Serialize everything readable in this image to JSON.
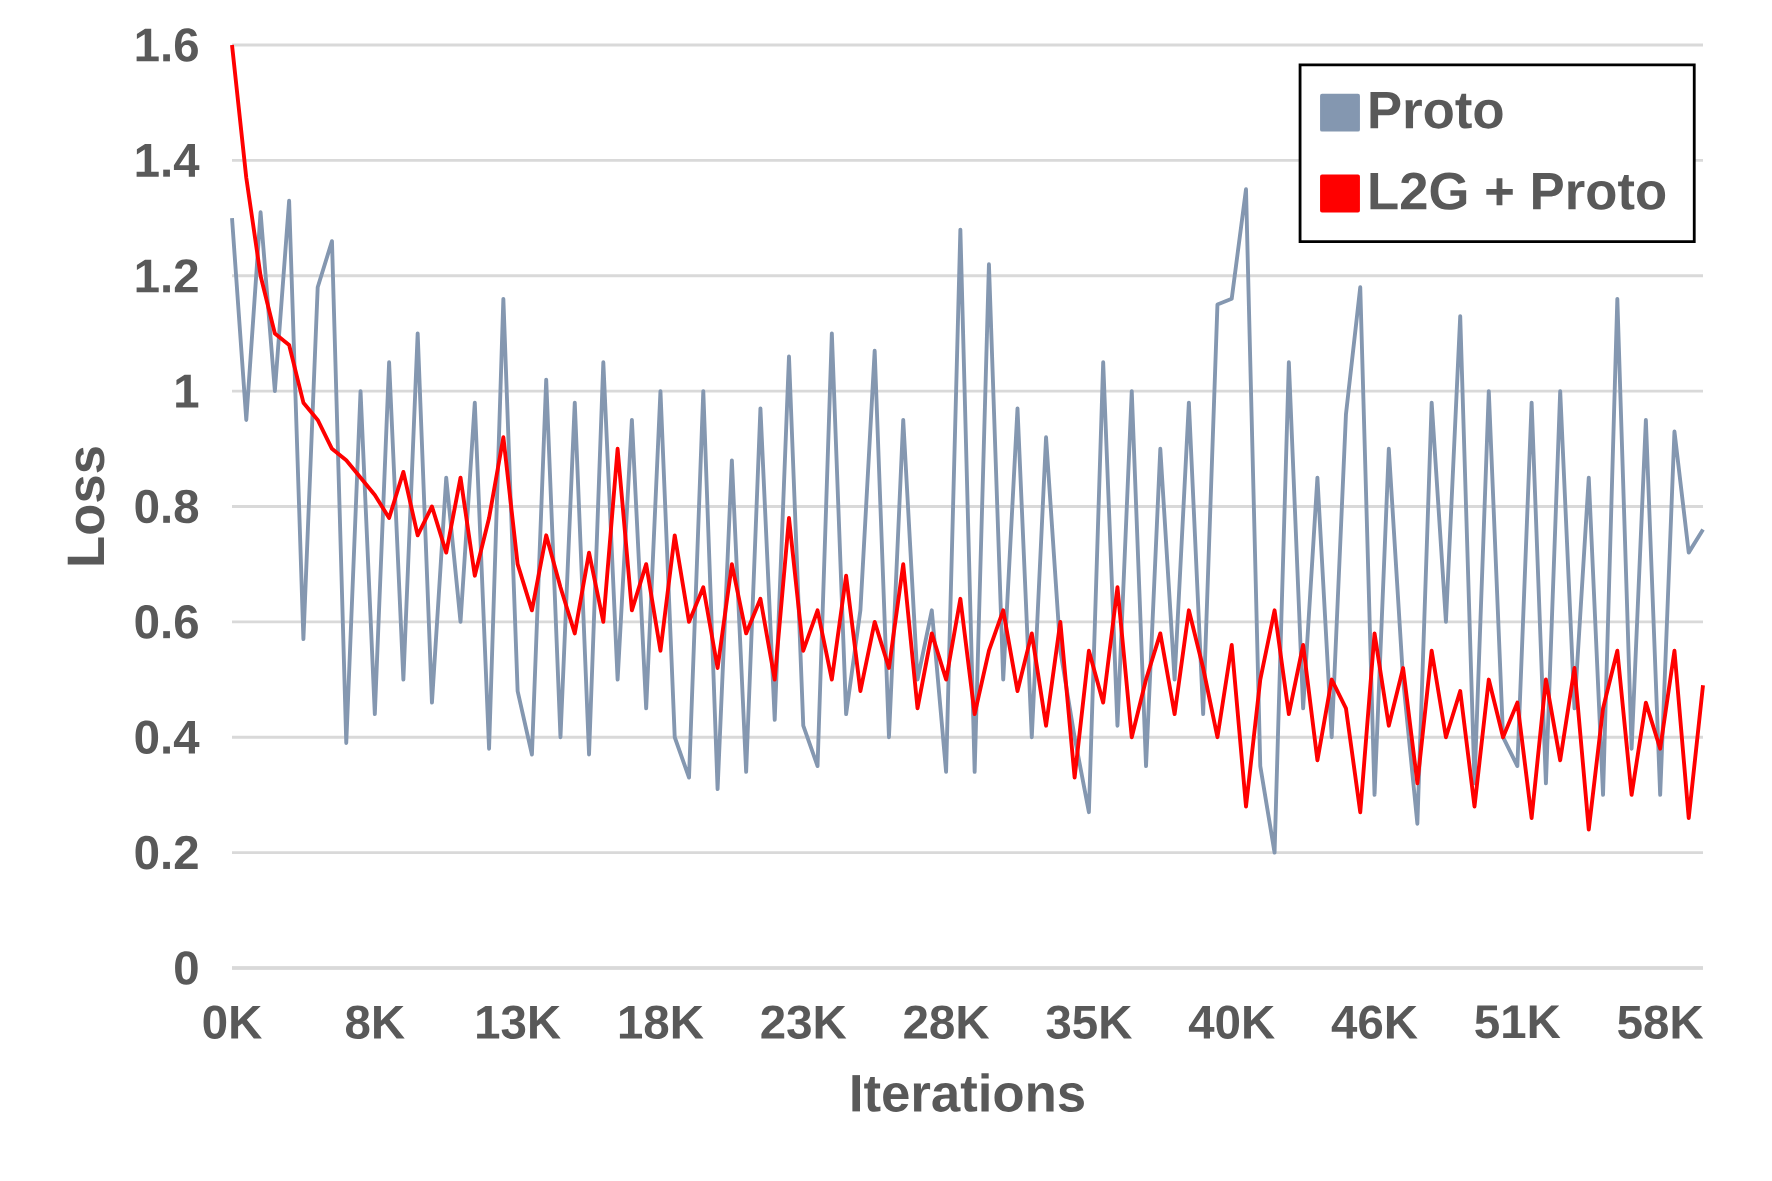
{
  "chart_data": {
    "type": "line",
    "xlabel": "Iterations",
    "ylabel": "Loss",
    "categories": [
      "0K",
      null,
      null,
      null,
      null,
      null,
      null,
      null,
      null,
      null,
      "8K",
      null,
      null,
      null,
      null,
      null,
      null,
      null,
      null,
      null,
      "13K",
      null,
      null,
      null,
      null,
      null,
      null,
      null,
      null,
      null,
      "18K",
      null,
      null,
      null,
      null,
      null,
      null,
      null,
      null,
      null,
      "23K",
      null,
      null,
      null,
      null,
      null,
      null,
      null,
      null,
      null,
      "28K",
      null,
      null,
      null,
      null,
      null,
      null,
      null,
      null,
      null,
      "35K",
      null,
      null,
      null,
      null,
      null,
      null,
      null,
      null,
      null,
      "40K",
      null,
      null,
      null,
      null,
      null,
      null,
      null,
      null,
      null,
      "46K",
      null,
      null,
      null,
      null,
      null,
      null,
      null,
      null,
      null,
      "51K",
      null,
      null,
      null,
      null,
      null,
      null,
      null,
      null,
      null,
      "58K",
      null,
      null,
      null
    ],
    "series": [
      {
        "name": "Proto",
        "color": "#8497b0",
        "values": [
          1.3,
          0.95,
          1.31,
          1.0,
          1.33,
          0.57,
          1.18,
          1.26,
          0.39,
          1.0,
          0.44,
          1.05,
          0.5,
          1.1,
          0.46,
          0.85,
          0.6,
          0.98,
          0.38,
          1.16,
          0.48,
          0.37,
          1.02,
          0.4,
          0.98,
          0.37,
          1.05,
          0.5,
          0.95,
          0.45,
          1.0,
          0.4,
          0.33,
          1.0,
          0.31,
          0.88,
          0.34,
          0.97,
          0.43,
          1.06,
          0.42,
          0.35,
          1.1,
          0.44,
          0.62,
          1.07,
          0.4,
          0.95,
          0.5,
          0.62,
          0.34,
          1.28,
          0.34,
          1.22,
          0.5,
          0.97,
          0.4,
          0.92,
          0.55,
          0.4,
          0.27,
          1.05,
          0.42,
          1.0,
          0.35,
          0.9,
          0.5,
          0.98,
          0.44,
          1.15,
          1.16,
          1.35,
          0.35,
          0.2,
          1.05,
          0.45,
          0.85,
          0.4,
          0.96,
          1.18,
          0.3,
          0.9,
          0.5,
          0.25,
          0.98,
          0.6,
          1.13,
          0.32,
          1.0,
          0.4,
          0.35,
          0.98,
          0.32,
          1.0,
          0.45,
          0.85,
          0.3,
          1.16,
          0.38,
          0.95,
          0.3,
          0.93,
          0.72,
          0.76
        ]
      },
      {
        "name": "L2G + Proto",
        "color": "#ff0000",
        "values": [
          1.6,
          1.37,
          1.2,
          1.1,
          1.08,
          0.98,
          0.95,
          0.9,
          0.88,
          0.85,
          0.82,
          0.78,
          0.86,
          0.75,
          0.8,
          0.72,
          0.85,
          0.68,
          0.78,
          0.92,
          0.7,
          0.62,
          0.75,
          0.66,
          0.58,
          0.72,
          0.6,
          0.9,
          0.62,
          0.7,
          0.55,
          0.75,
          0.6,
          0.66,
          0.52,
          0.7,
          0.58,
          0.64,
          0.5,
          0.78,
          0.55,
          0.62,
          0.5,
          0.68,
          0.48,
          0.6,
          0.52,
          0.7,
          0.45,
          0.58,
          0.5,
          0.64,
          0.44,
          0.55,
          0.62,
          0.48,
          0.58,
          0.42,
          0.6,
          0.33,
          0.55,
          0.46,
          0.66,
          0.4,
          0.5,
          0.58,
          0.44,
          0.62,
          0.52,
          0.4,
          0.56,
          0.28,
          0.5,
          0.62,
          0.44,
          0.56,
          0.36,
          0.5,
          0.45,
          0.27,
          0.58,
          0.42,
          0.52,
          0.32,
          0.55,
          0.4,
          0.48,
          0.28,
          0.5,
          0.4,
          0.46,
          0.26,
          0.5,
          0.36,
          0.52,
          0.24,
          0.45,
          0.55,
          0.3,
          0.46,
          0.38,
          0.55,
          0.26,
          0.49
        ]
      }
    ],
    "ylim": [
      0,
      1.6
    ],
    "yticks": [
      0,
      0.2,
      0.4,
      0.6,
      0.8,
      1,
      1.2,
      1.4,
      1.6
    ],
    "grid": "y",
    "legend": "top right",
    "marker": "none",
    "line_style": "solid"
  }
}
